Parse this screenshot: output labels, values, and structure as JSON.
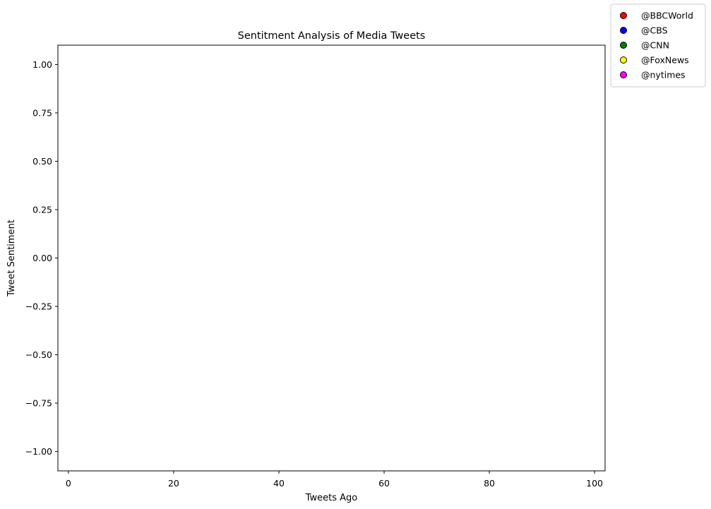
{
  "chart_data": {
    "type": "scatter",
    "title": "Sentitment Analysis of Media Tweets",
    "xlabel": "Tweets Ago",
    "ylabel": "Tweet Sentiment",
    "xlim": [
      -2,
      102
    ],
    "ylim": [
      -1.1,
      1.1
    ],
    "xticks": [
      0,
      20,
      40,
      60,
      80,
      100
    ],
    "xtick_labels": [
      "0",
      "20",
      "40",
      "60",
      "80",
      "100"
    ],
    "yticks": [
      1.0,
      0.75,
      0.5,
      0.25,
      0.0,
      -0.25,
      -0.5,
      -0.75,
      -1.0
    ],
    "ytick_labels": [
      "1.00",
      "0.75",
      "0.50",
      "0.25",
      "0.00",
      "−0.25",
      "−0.50",
      "−0.75",
      "−1.00"
    ],
    "grid": false,
    "legend_position": "outside-top-right",
    "series": [
      {
        "name": "@BBCWorld",
        "color": "#ff0000",
        "x": [],
        "y": []
      },
      {
        "name": "@CBS",
        "color": "#0000ff",
        "x": [],
        "y": []
      },
      {
        "name": "@CNN",
        "color": "#008000",
        "x": [],
        "y": []
      },
      {
        "name": "@FoxNews",
        "color": "#ffff00",
        "x": [],
        "y": []
      },
      {
        "name": "@nytimes",
        "color": "#ff00ff",
        "x": [],
        "y": []
      }
    ]
  }
}
